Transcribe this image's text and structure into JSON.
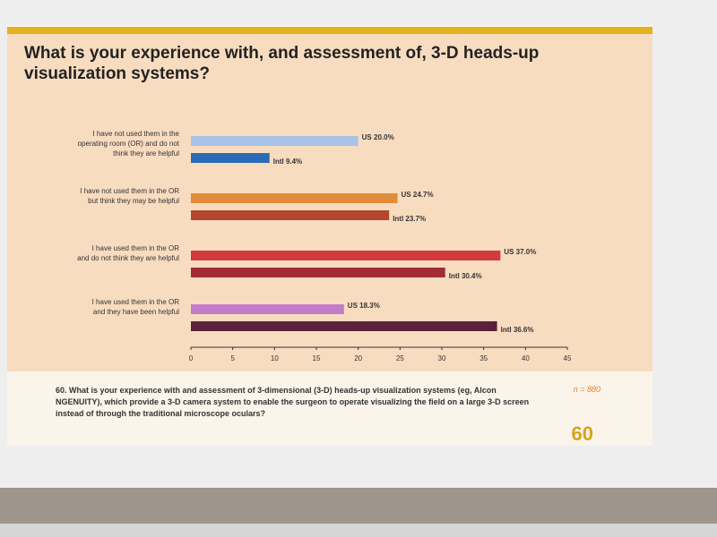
{
  "chart_data": {
    "type": "bar",
    "orientation": "horizontal",
    "title": "What is your experience with, and assessment of, 3-D heads-up visualization systems?",
    "categories": [
      "I have not used them in the\noperating room (OR) and do not\nthink they are helpful",
      "I have not used them in the OR\nbut think they may be helpful",
      "I have used them in the OR\nand do not think they are helpful",
      "I have used them in the OR\nand they have been helpful"
    ],
    "series": [
      {
        "colors": [
          "#a9c2e8",
          "#e08c3b",
          "#d33b3b",
          "#c47bca"
        ],
        "values": [
          20.0,
          24.7,
          37.0,
          18.3
        ],
        "value_labels": [
          "US 20.0%",
          "US 24.7%",
          "US 37.0%",
          "US 18.3%"
        ]
      },
      {
        "colors": [
          "#2b6cb9",
          "#b4462f",
          "#a32b36",
          "#5b203b"
        ],
        "values": [
          9.4,
          23.7,
          30.4,
          36.6
        ],
        "value_labels": [
          "Intl 9.4%",
          "Intl 23.7%",
          "Intl 30.4%",
          "Intl 36.6%"
        ]
      }
    ],
    "xlim": [
      0,
      45
    ],
    "xticks": [
      0,
      5,
      10,
      15,
      20,
      25,
      30,
      35,
      40,
      45
    ],
    "note": "60. What is your experience with and assessment of 3-dimensional (3-D) heads-up visualization systems (eg, Alcon NGENUITY), which provide a 3-D camera system to enable the surgeon to operate visualizing the field on a large 3-D screen instead of through the traditional microscope oculars?",
    "sample_size": "n = 880",
    "page_number": "60"
  }
}
